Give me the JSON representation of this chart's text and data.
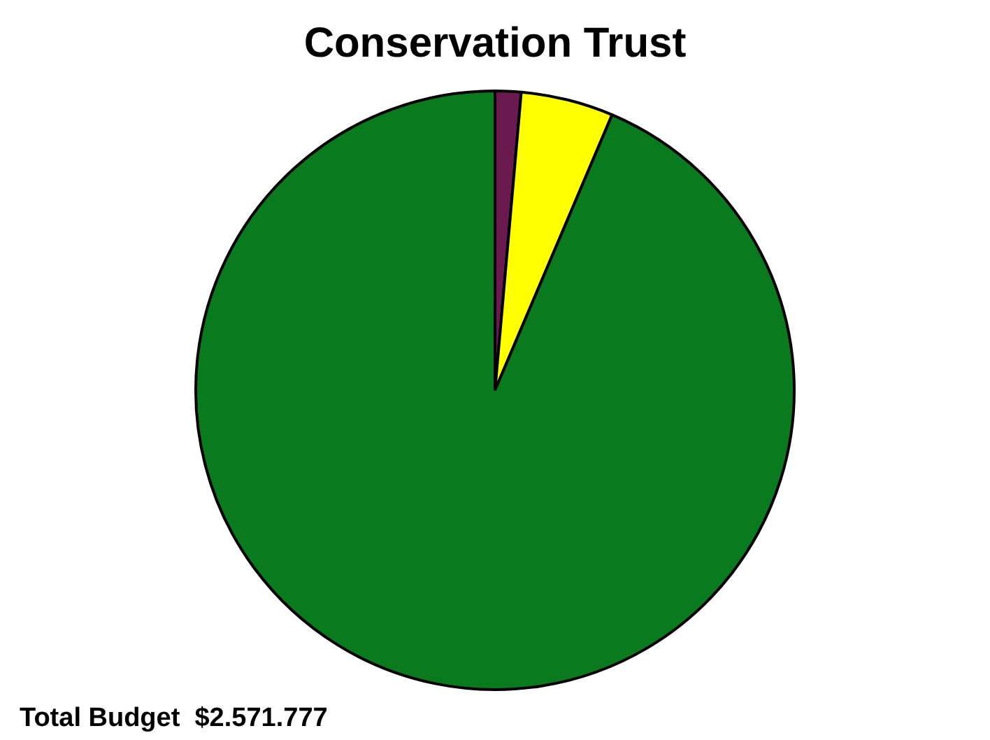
{
  "chart_data": {
    "type": "pie",
    "title": "Conservation Trust",
    "categories": [
      null,
      null,
      null
    ],
    "values": [
      1.4,
      5.0,
      93.6
    ],
    "colors": [
      "#6b1a4f",
      "#ffff00",
      "#0a7a1e"
    ],
    "legend": false,
    "annotations": [
      "Total Budget  $2.571.777"
    ]
  }
}
